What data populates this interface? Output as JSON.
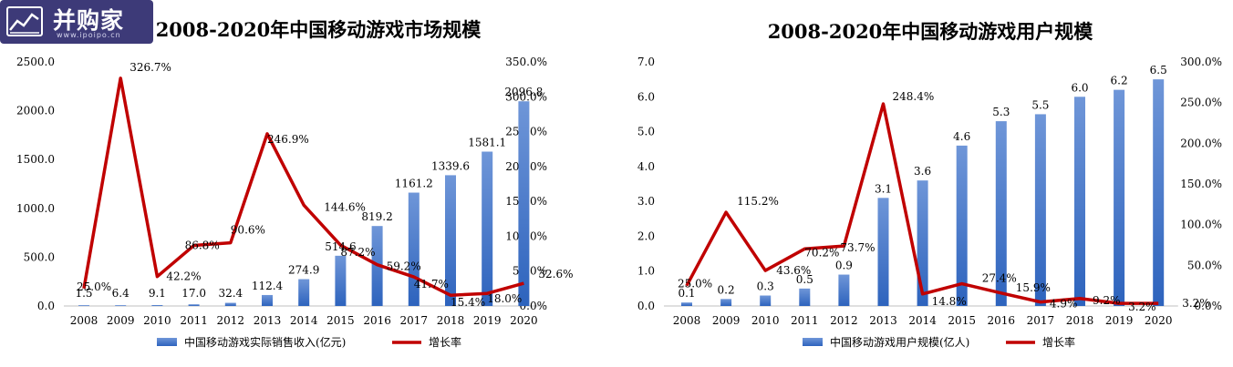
{
  "chart_data": [
    {
      "type": "bar",
      "title": "2008-2020年中国移动游戏市场规模",
      "categories": [
        "2008",
        "2009",
        "2010",
        "2011",
        "2012",
        "2013",
        "2014",
        "2015",
        "2016",
        "2017",
        "2018",
        "2019",
        "2020"
      ],
      "series": [
        {
          "name": "中国移动游戏实际销售收入(亿元)",
          "type": "bar",
          "axis": "left",
          "values": [
            1.5,
            6.4,
            9.1,
            17.0,
            32.4,
            112.4,
            274.9,
            514.6,
            819.2,
            1161.2,
            1339.6,
            1581.1,
            2096.8
          ],
          "labels": [
            "1.5",
            "6.4",
            "9.1",
            "17.0",
            "32.4",
            "112.4",
            "274.9",
            "514.6",
            "819.2",
            "1161.2",
            "1339.6",
            "1581.1",
            "2096.8"
          ]
        },
        {
          "name": "增长率",
          "type": "line",
          "axis": "right",
          "values": [
            25.0,
            326.7,
            42.2,
            86.8,
            90.6,
            246.9,
            144.6,
            87.2,
            59.2,
            41.7,
            15.4,
            18.0,
            32.6
          ],
          "labels": [
            "25.0%",
            "326.7%",
            "42.2%",
            "86.8%",
            "90.6%",
            "246.9%",
            "144.6%",
            "87.2%",
            "59.2%",
            "41.7%",
            "15.4%",
            "18.0%",
            "32.6%"
          ]
        }
      ],
      "yticks_left": [
        "0.0",
        "500.0",
        "1000.0",
        "1500.0",
        "2000.0",
        "2500.0"
      ],
      "ylim_left": [
        0,
        2500
      ],
      "yticks_right": [
        "0.0%",
        "50.0%",
        "100.0%",
        "150.0%",
        "200.0%",
        "250.0%",
        "300.0%",
        "350.0%"
      ],
      "ylim_right": [
        0,
        350
      ],
      "highlight_label_index": 5,
      "legend": "bottom",
      "grid": false
    },
    {
      "type": "bar",
      "title": "2008-2020年中国移动游戏用户规模",
      "categories": [
        "2008",
        "2009",
        "2010",
        "2011",
        "2012",
        "2013",
        "2014",
        "2015",
        "2016",
        "2017",
        "2018",
        "2019",
        "2020"
      ],
      "series": [
        {
          "name": "中国移动游戏用户规模(亿人)",
          "type": "bar",
          "axis": "left",
          "values": [
            0.1,
            0.2,
            0.3,
            0.5,
            0.9,
            3.1,
            3.6,
            4.6,
            5.3,
            5.5,
            6.0,
            6.2,
            6.5
          ],
          "labels": [
            "0.1",
            "0.2",
            "0.3",
            "0.5",
            "0.9",
            "3.1",
            "3.6",
            "4.6",
            "5.3",
            "5.5",
            "6.0",
            "6.2",
            "6.5"
          ]
        },
        {
          "name": "增长率",
          "type": "line",
          "axis": "right",
          "values": [
            25.0,
            115.2,
            43.6,
            70.2,
            73.7,
            248.4,
            14.8,
            27.4,
            15.9,
            4.9,
            9.2,
            3.2,
            3.2
          ],
          "labels": [
            "25.0%",
            "115.2%",
            "43.6%",
            "70.2%",
            "73.7%",
            "248.4%",
            "14.8%",
            "27.4%",
            "15.9%",
            "4.9%",
            "9.2%",
            "3.2%",
            "3.2%"
          ]
        }
      ],
      "yticks_left": [
        "0.0",
        "1.0",
        "2.0",
        "3.0",
        "4.0",
        "5.0",
        "6.0",
        "7.0"
      ],
      "ylim_left": [
        0,
        7
      ],
      "yticks_right": [
        "0.0%",
        "50.0%",
        "100.0%",
        "150.0%",
        "200.0%",
        "250.0%",
        "300.0%"
      ],
      "ylim_right": [
        0,
        300
      ],
      "highlight_label_index": 5,
      "legend": "bottom",
      "grid": false
    }
  ],
  "watermark": {
    "name": "并购家",
    "url": "www.ipoipo.cn"
  },
  "colors": {
    "bar_top": "#6f96d8",
    "bar_bottom": "#2d63bd",
    "line": "#c00000",
    "highlight": "#c00000",
    "text": "#000000",
    "axis": "#bfbfbf"
  }
}
